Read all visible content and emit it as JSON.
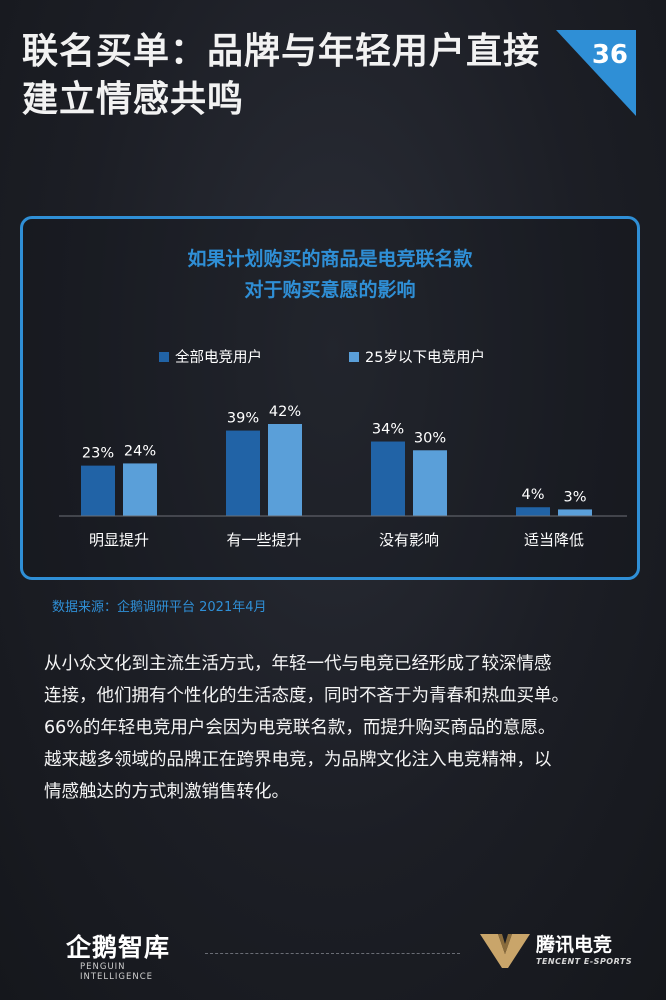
{
  "page": {
    "title": "联名买单：品牌与年轻用户直接建立情感共鸣",
    "page_number": "36",
    "accent_color": "#2f8fd6"
  },
  "chart_data": {
    "type": "bar",
    "title_lines": [
      "如果计划购买的商品是电竞联名款",
      "对于购买意愿的影响"
    ],
    "categories": [
      "明显提升",
      "有一些提升",
      "没有影响",
      "适当降低"
    ],
    "series": [
      {
        "name": "全部电竞用户",
        "color": "#2163a6",
        "values": [
          23,
          39,
          34,
          4
        ],
        "labels": [
          "23%",
          "39%",
          "34%",
          "4%"
        ]
      },
      {
        "name": "25岁以下电竞用户",
        "color": "#5a9fd9",
        "values": [
          24,
          42,
          30,
          3
        ],
        "labels": [
          "24%",
          "42%",
          "30%",
          "3%"
        ]
      }
    ],
    "ylim": [
      0,
      42
    ],
    "legend_position": "top",
    "grid": false
  },
  "source": "数据来源：企鹅调研平台 2021年4月",
  "body": {
    "lines": [
      "从小众文化到主流生活方式，年轻一代与电竞已经形成了较深情感",
      "连接，他们拥有个性化的生活态度，同时不吝于为青春和热血买单。",
      "66%的年轻电竞用户会因为电竞联名款，而提升购买商品的意愿。",
      "越来越多领域的品牌正在跨界电竞，为品牌文化注入电竞精神，以",
      "情感触达的方式刺激销售转化。"
    ]
  },
  "footer": {
    "left_logo": "企鹅智库",
    "left_logo_sub": "PENGUIN INTELLIGENCE",
    "right_logo": "腾讯电竞",
    "right_logo_sub": "TENCENT E-SPORTS"
  }
}
